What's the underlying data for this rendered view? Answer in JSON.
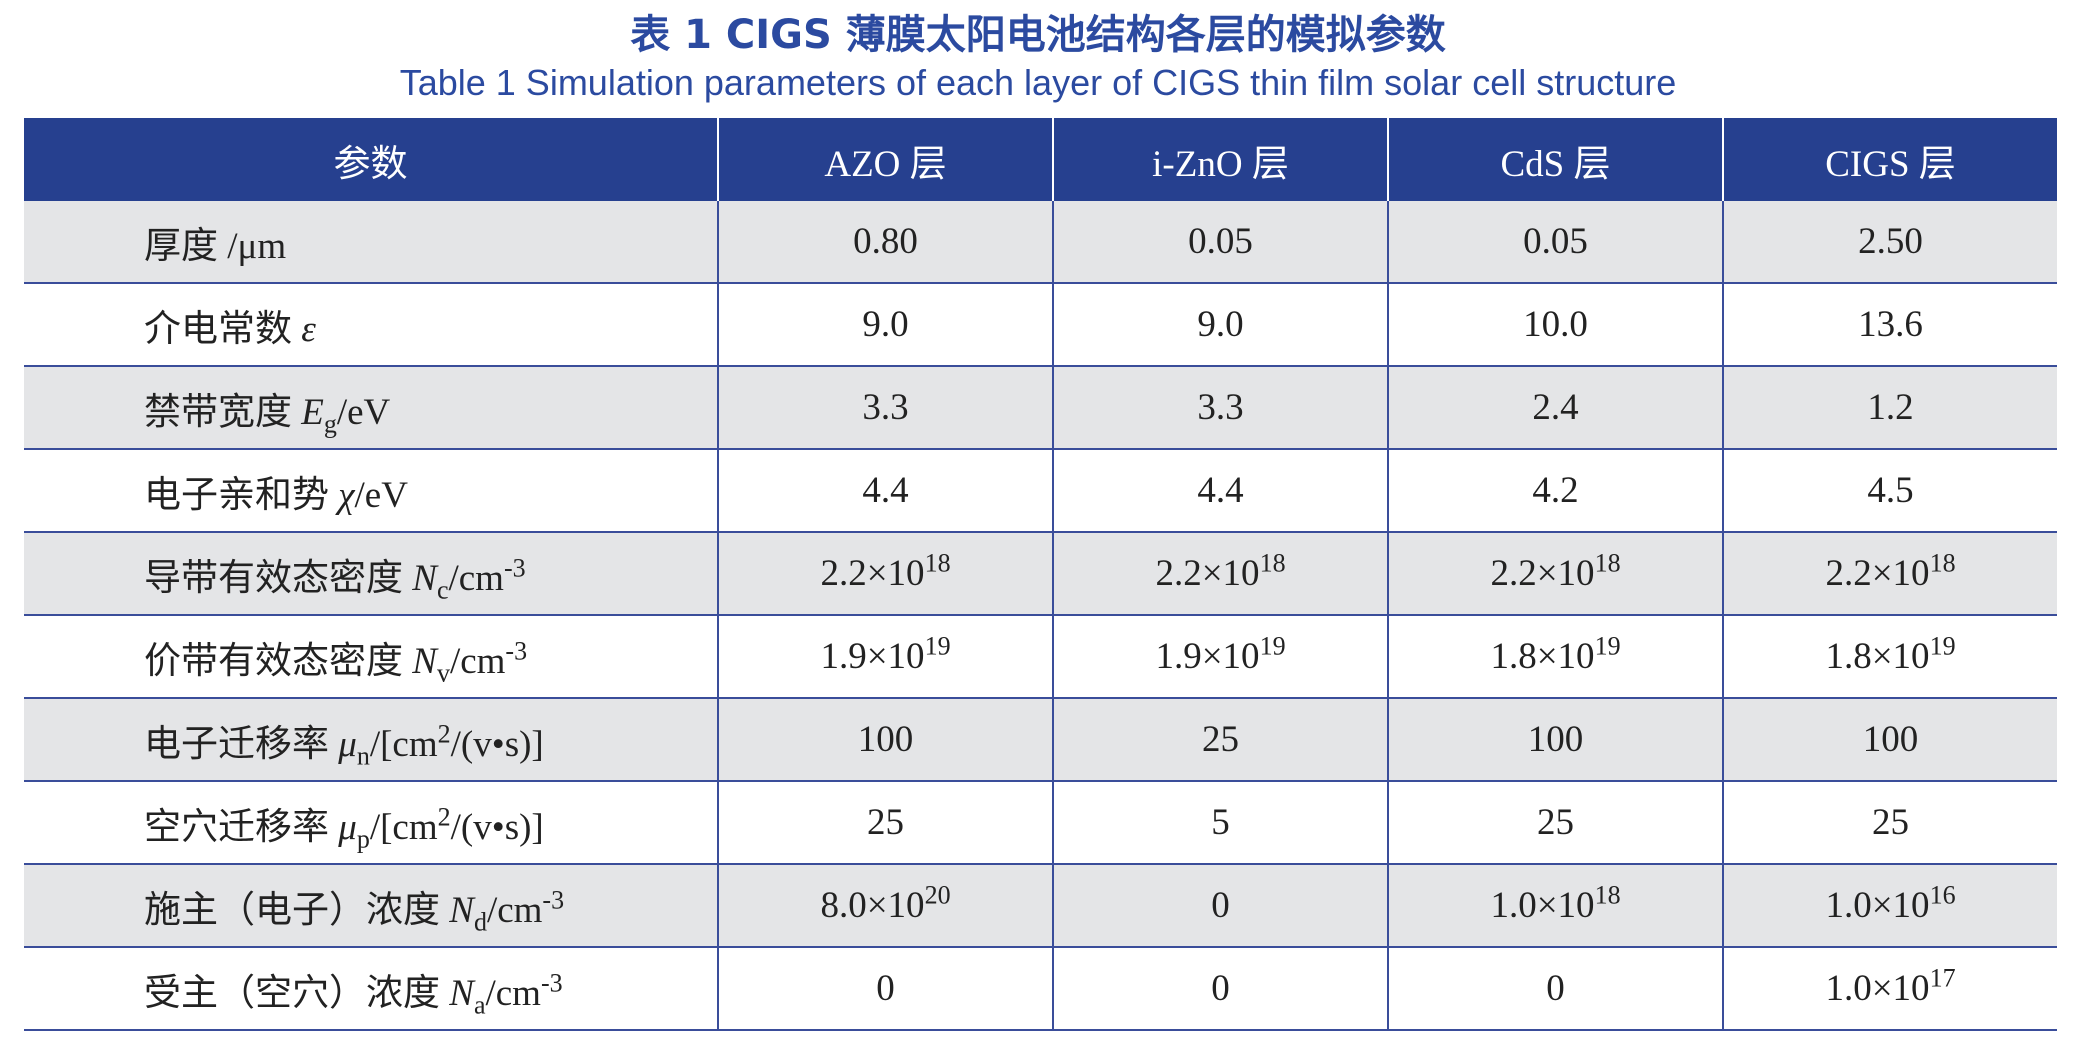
{
  "header": {
    "title": "表 1  CIGS 薄膜太阳电池结构各层的模拟参数",
    "subtitle": "Table 1  Simulation parameters of each layer of CIGS thin film solar cell structure"
  },
  "table": {
    "columns": [
      "参数",
      "AZO 层",
      "i-ZnO 层",
      "CdS 层",
      "CIGS 层"
    ],
    "rows": [
      {
        "label": [
          {
            "text": "厚度 /μm"
          }
        ],
        "cells": [
          "0.80",
          "0.05",
          "0.05",
          "2.50"
        ]
      },
      {
        "label": [
          {
            "text": "介电常数 "
          },
          {
            "text": "ε",
            "style": "italic"
          }
        ],
        "cells": [
          "9.0",
          "9.0",
          "10.0",
          "13.6"
        ]
      },
      {
        "label": [
          {
            "text": "禁带宽度 "
          },
          {
            "text": "E",
            "style": "italic"
          },
          {
            "text": "g",
            "style": "sub"
          },
          {
            "text": "/eV"
          }
        ],
        "cells": [
          "3.3",
          "3.3",
          "2.4",
          "1.2"
        ]
      },
      {
        "label": [
          {
            "text": "电子亲和势 "
          },
          {
            "text": "χ",
            "style": "italic"
          },
          {
            "text": "/eV"
          }
        ],
        "cells": [
          "4.4",
          "4.4",
          "4.2",
          "4.5"
        ]
      },
      {
        "label": [
          {
            "text": "导带有效态密度 "
          },
          {
            "text": "N",
            "style": "italic"
          },
          {
            "text": "c",
            "style": "sub"
          },
          {
            "text": "/cm"
          },
          {
            "text": "-3",
            "style": "sup"
          }
        ],
        "cells": [
          [
            {
              "text": "2.2×10"
            },
            {
              "text": "18",
              "style": "sup"
            }
          ],
          [
            {
              "text": "2.2×10"
            },
            {
              "text": "18",
              "style": "sup"
            }
          ],
          [
            {
              "text": "2.2×10"
            },
            {
              "text": "18",
              "style": "sup"
            }
          ],
          [
            {
              "text": "2.2×10"
            },
            {
              "text": "18",
              "style": "sup"
            }
          ]
        ]
      },
      {
        "label": [
          {
            "text": "价带有效态密度 "
          },
          {
            "text": "N",
            "style": "italic"
          },
          {
            "text": "v",
            "style": "sub"
          },
          {
            "text": "/cm"
          },
          {
            "text": "-3",
            "style": "sup"
          }
        ],
        "cells": [
          [
            {
              "text": "1.9×10"
            },
            {
              "text": "19",
              "style": "sup"
            }
          ],
          [
            {
              "text": "1.9×10"
            },
            {
              "text": "19",
              "style": "sup"
            }
          ],
          [
            {
              "text": "1.8×10"
            },
            {
              "text": "19",
              "style": "sup"
            }
          ],
          [
            {
              "text": "1.8×10"
            },
            {
              "text": "19",
              "style": "sup"
            }
          ]
        ]
      },
      {
        "label": [
          {
            "text": "电子迁移率 "
          },
          {
            "text": "μ",
            "style": "italic"
          },
          {
            "text": "n",
            "style": "sub"
          },
          {
            "text": "/[cm"
          },
          {
            "text": "2",
            "style": "sup"
          },
          {
            "text": "/(v•s)]"
          }
        ],
        "cells": [
          "100",
          "25",
          "100",
          "100"
        ]
      },
      {
        "label": [
          {
            "text": "空穴迁移率 "
          },
          {
            "text": "μ",
            "style": "italic"
          },
          {
            "text": "p",
            "style": "sub"
          },
          {
            "text": "/[cm"
          },
          {
            "text": "2",
            "style": "sup"
          },
          {
            "text": "/(v•s)]"
          }
        ],
        "cells": [
          "25",
          "5",
          "25",
          "25"
        ]
      },
      {
        "label": [
          {
            "text": "施主（电子）浓度 "
          },
          {
            "text": "N",
            "style": "italic"
          },
          {
            "text": "d",
            "style": "sub"
          },
          {
            "text": "/cm"
          },
          {
            "text": "-3",
            "style": "sup"
          }
        ],
        "cells": [
          [
            {
              "text": "8.0×10"
            },
            {
              "text": "20",
              "style": "sup"
            }
          ],
          "0",
          [
            {
              "text": "1.0×10"
            },
            {
              "text": "18",
              "style": "sup"
            }
          ],
          [
            {
              "text": "1.0×10"
            },
            {
              "text": "16",
              "style": "sup"
            }
          ]
        ]
      },
      {
        "label": [
          {
            "text": "受主（空穴）浓度 "
          },
          {
            "text": "N",
            "style": "italic"
          },
          {
            "text": "a",
            "style": "sub"
          },
          {
            "text": "/cm"
          },
          {
            "text": "-3",
            "style": "sup"
          }
        ],
        "cells": [
          "0",
          "0",
          "0",
          [
            {
              "text": "1.0×10"
            },
            {
              "text": "17",
              "style": "sup"
            }
          ]
        ]
      }
    ]
  }
}
